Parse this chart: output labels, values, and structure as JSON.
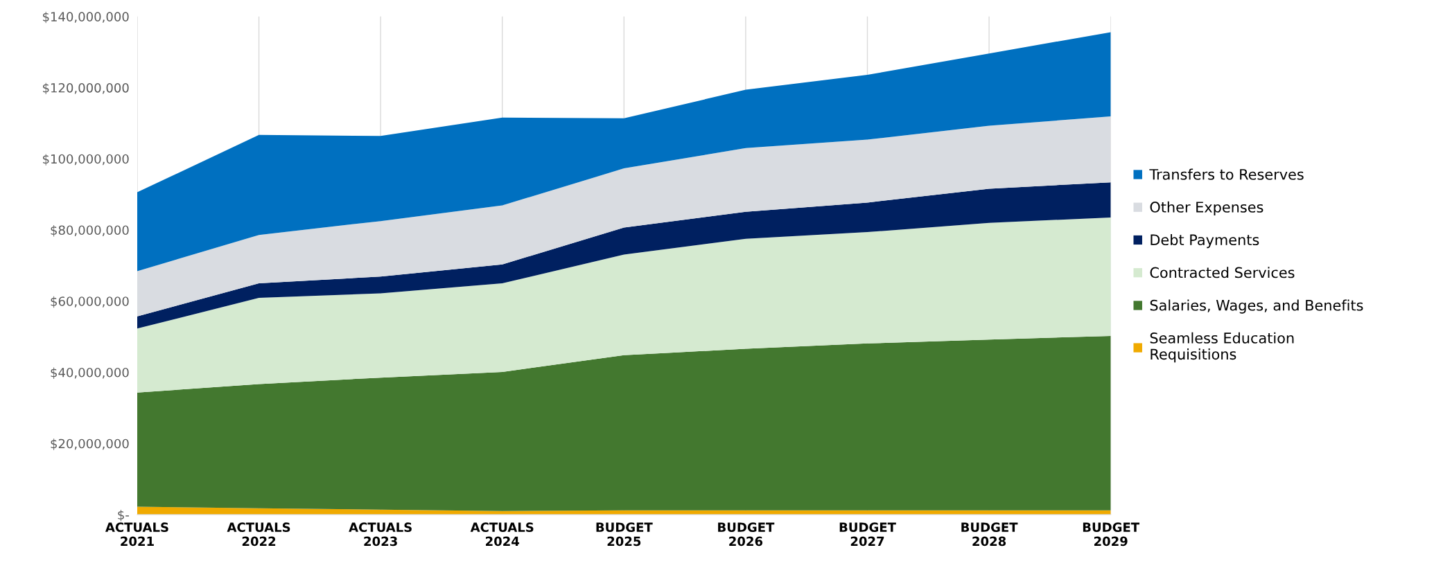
{
  "chart_data": {
    "type": "area",
    "stacked": true,
    "categories": [
      "ACTUALS\n2021",
      "ACTUALS\n2022",
      "ACTUALS\n2023",
      "ACTUALS\n2024",
      "BUDGET\n2025",
      "BUDGET\n2026",
      "BUDGET\n2027",
      "BUDGET\n2028",
      "BUDGET\n2029"
    ],
    "series": [
      {
        "name": "Seamless Education\nRequisitions",
        "color": "#f0aa00",
        "values": [
          2200000,
          1800000,
          1400000,
          1000000,
          1200000,
          1200000,
          1200000,
          1200000,
          1200000
        ]
      },
      {
        "name": "Salaries, Wages, and Benefits",
        "color": "#43782f",
        "values": [
          32100000,
          34900000,
          37100000,
          39100000,
          43600000,
          45400000,
          46900000,
          48000000,
          49000000
        ]
      },
      {
        "name": "Contracted Services",
        "color": "#d5ead0",
        "values": [
          18000000,
          24200000,
          23700000,
          24900000,
          28300000,
          30900000,
          31300000,
          32800000,
          33300000
        ]
      },
      {
        "name": "Debt Payments",
        "color": "#002060",
        "values": [
          3400000,
          4100000,
          4700000,
          5300000,
          7600000,
          7600000,
          8300000,
          9600000,
          9900000
        ]
      },
      {
        "name": "Other Expenses",
        "color": "#d9dce1",
        "values": [
          12700000,
          13600000,
          15600000,
          16600000,
          16600000,
          17900000,
          17700000,
          17700000,
          18500000
        ]
      },
      {
        "name": "Transfers to Reserves",
        "color": "#0070c0",
        "values": [
          22200000,
          28100000,
          23900000,
          24700000,
          14100000,
          16400000,
          18200000,
          20300000,
          23700000
        ]
      }
    ],
    "ylim": [
      0,
      140000000
    ],
    "yticks": [
      {
        "value": 0,
        "label": "$-"
      },
      {
        "value": 20000000,
        "label": "$20,000,000"
      },
      {
        "value": 40000000,
        "label": "$40,000,000"
      },
      {
        "value": 60000000,
        "label": "$60,000,000"
      },
      {
        "value": 80000000,
        "label": "$80,000,000"
      },
      {
        "value": 100000000,
        "label": "$100,000,000"
      },
      {
        "value": 120000000,
        "label": "$120,000,000"
      },
      {
        "value": 140000000,
        "label": "$140,000,000"
      }
    ],
    "grid": "x",
    "legend": "right"
  }
}
